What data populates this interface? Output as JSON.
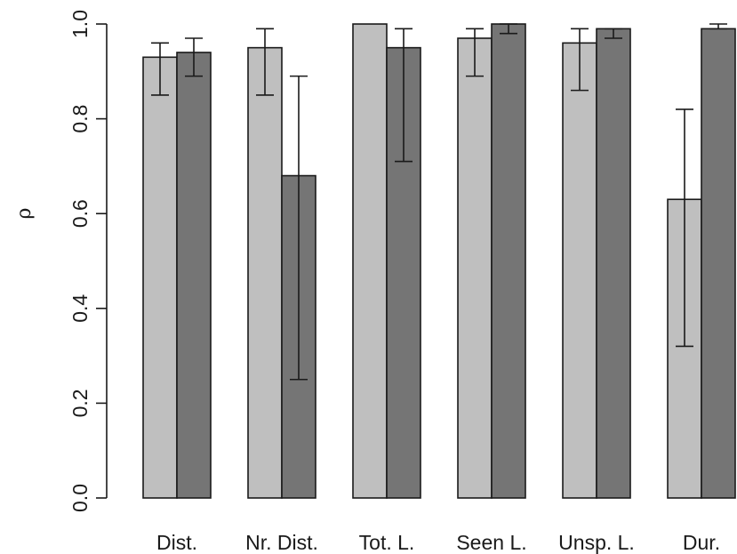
{
  "chart_data": {
    "type": "bar",
    "title": "",
    "xlabel": "",
    "ylabel": "ρ",
    "ylim": [
      0,
      1
    ],
    "yticks": [
      "0.0",
      "0.2",
      "0.4",
      "0.6",
      "0.8",
      "1.0"
    ],
    "categories": [
      "Dist.",
      "Nr. Dist.",
      "Tot. L.",
      "Seen L.",
      "Unsp. L.",
      "Dur."
    ],
    "series": [
      {
        "color": "#bfbfbf",
        "values": [
          0.93,
          0.95,
          1.0,
          0.97,
          0.96,
          0.63
        ],
        "error_low": [
          0.85,
          0.85,
          1.0,
          0.89,
          0.86,
          0.32
        ],
        "error_high": [
          0.96,
          0.99,
          1.0,
          0.99,
          0.99,
          0.82
        ]
      },
      {
        "color": "#757575",
        "values": [
          0.94,
          0.68,
          0.95,
          1.0,
          0.99,
          0.99
        ],
        "error_low": [
          0.89,
          0.25,
          0.71,
          0.98,
          0.97,
          0.99
        ],
        "error_high": [
          0.97,
          0.89,
          0.99,
          1.0,
          0.99,
          1.0
        ]
      }
    ],
    "grid": false,
    "legend": "none"
  }
}
